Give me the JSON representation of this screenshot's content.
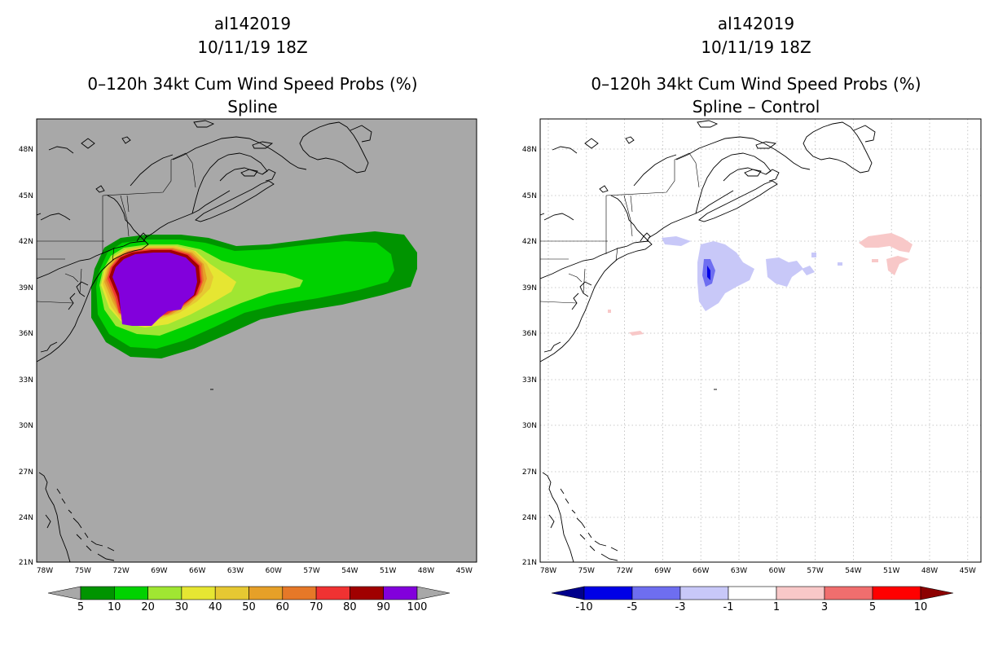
{
  "colors": {
    "map_bg_left": "#a8a8a8",
    "map_bg_right": "#ffffff",
    "coast": "#000000",
    "grid": "#b8b8b8"
  },
  "left_panel": {
    "storm_id": "al142019",
    "init_time": "10/11/19 18Z",
    "product": "0–120h 34kt Cum Wind Speed Probs (%)",
    "subtitle": "Spline",
    "lat_labels": [
      "48N",
      "45N",
      "42N",
      "39N",
      "36N",
      "33N",
      "30N",
      "27N",
      "24N",
      "21N"
    ],
    "lon_labels": [
      "78W",
      "75W",
      "72W",
      "69W",
      "66W",
      "63W",
      "60W",
      "57W",
      "54W",
      "51W",
      "48W",
      "45W"
    ],
    "colorbar": {
      "colors": [
        "#009400",
        "#00d200",
        "#a0e632",
        "#e6e632",
        "#e6c832",
        "#e6a028",
        "#e67828",
        "#f03232",
        "#a00000",
        "#8200dc"
      ],
      "under_color": "#a8a8a8",
      "over_color": "#a8a8a8",
      "labels": [
        "5",
        "10",
        "20",
        "30",
        "40",
        "50",
        "60",
        "70",
        "80",
        "90",
        "100"
      ]
    }
  },
  "right_panel": {
    "storm_id": "al142019",
    "init_time": "10/11/19 18Z",
    "product": "0–120h 34kt Cum Wind Speed Probs (%)",
    "subtitle": "Spline – Control",
    "lat_labels": [
      "48N",
      "45N",
      "42N",
      "39N",
      "36N",
      "33N",
      "30N",
      "27N",
      "24N",
      "21N"
    ],
    "lon_labels": [
      "78W",
      "75W",
      "72W",
      "69W",
      "66W",
      "63W",
      "60W",
      "57W",
      "54W",
      "51W",
      "48W",
      "45W"
    ],
    "colorbar": {
      "colors": [
        "#0000e6",
        "#6e6ef0",
        "#c8c8f8",
        "#ffffff",
        "#f8c8c8",
        "#f06e6e",
        "#ff0000"
      ],
      "under_color": "#00008c",
      "over_color": "#8c0000",
      "labels": [
        "-10",
        "-5",
        "-3",
        "-1",
        "1",
        "3",
        "5",
        "10"
      ]
    }
  }
}
